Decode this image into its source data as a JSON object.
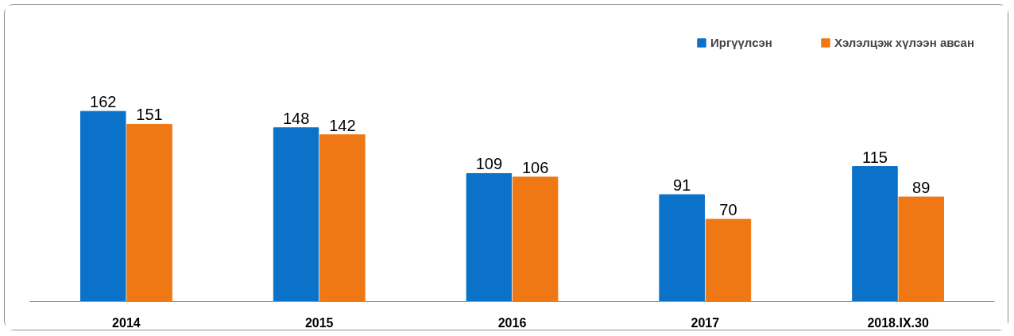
{
  "chart_data": {
    "type": "bar",
    "categories": [
      "2014",
      "2015",
      "2016",
      "2017",
      "2018.IX.30"
    ],
    "series": [
      {
        "name": "Иргүүлсэн",
        "color": "#0a72c8",
        "values": [
          162,
          148,
          109,
          91,
          115
        ]
      },
      {
        "name": "Хэлэлцэж хүлээн авсан",
        "color": "#f07814",
        "values": [
          151,
          142,
          106,
          70,
          89
        ]
      }
    ],
    "data_labels": true,
    "legend": "top right",
    "grid": false,
    "tick_labels": "x"
  }
}
